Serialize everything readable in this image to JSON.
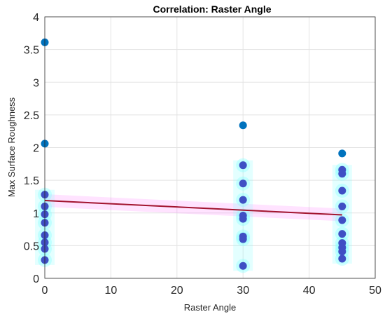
{
  "chart_data": {
    "type": "scatter",
    "title": "Correlation: Raster Angle",
    "xlabel": "Raster Angle",
    "ylabel": "Max Surface Roughness",
    "xlim": [
      0,
      50
    ],
    "ylim": [
      0,
      4
    ],
    "xticks": [
      0,
      10,
      20,
      30,
      40,
      50
    ],
    "yticks": [
      0,
      0.5,
      1,
      1.5,
      2,
      2.5,
      3,
      3.5,
      4
    ],
    "xtick_labels": [
      "0",
      "10",
      "20",
      "30",
      "40",
      "50"
    ],
    "ytick_labels": [
      "0",
      "0.5",
      "1",
      "1.5",
      "2",
      "2.5",
      "3",
      "3.5",
      "4"
    ],
    "grid": true,
    "series": [
      {
        "kind": "outlier",
        "color": "#0072BD",
        "points": [
          {
            "x": 0,
            "y": 3.61
          },
          {
            "x": 0,
            "y": 2.06
          },
          {
            "x": 30,
            "y": 2.34
          },
          {
            "x": 45,
            "y": 1.91
          }
        ]
      },
      {
        "kind": "observation",
        "color": "#3F4FC4",
        "points": [
          {
            "x": 0,
            "y": 1.28
          },
          {
            "x": 0,
            "y": 1.1
          },
          {
            "x": 0,
            "y": 0.98
          },
          {
            "x": 0,
            "y": 0.85
          },
          {
            "x": 0,
            "y": 0.66
          },
          {
            "x": 0,
            "y": 0.55
          },
          {
            "x": 0,
            "y": 0.45
          },
          {
            "x": 0,
            "y": 0.28
          },
          {
            "x": 30,
            "y": 1.73
          },
          {
            "x": 30,
            "y": 1.45
          },
          {
            "x": 30,
            "y": 1.2
          },
          {
            "x": 30,
            "y": 0.96
          },
          {
            "x": 30,
            "y": 0.91
          },
          {
            "x": 30,
            "y": 0.64
          },
          {
            "x": 30,
            "y": 0.6
          },
          {
            "x": 30,
            "y": 0.19
          },
          {
            "x": 45,
            "y": 1.66
          },
          {
            "x": 45,
            "y": 1.6
          },
          {
            "x": 45,
            "y": 1.34
          },
          {
            "x": 45,
            "y": 1.1
          },
          {
            "x": 45,
            "y": 0.89
          },
          {
            "x": 45,
            "y": 0.68
          },
          {
            "x": 45,
            "y": 0.54
          },
          {
            "x": 45,
            "y": 0.47
          },
          {
            "x": 45,
            "y": 0.41
          },
          {
            "x": 45,
            "y": 0.3
          }
        ]
      }
    ],
    "fit_line": {
      "color": "#A2142F",
      "points": [
        {
          "x": 0,
          "y": 1.19
        },
        {
          "x": 45,
          "y": 0.97
        }
      ]
    },
    "bands": {
      "fit_band_color": "#FF66FF",
      "point_halo_color": "#7FFFFF"
    }
  }
}
